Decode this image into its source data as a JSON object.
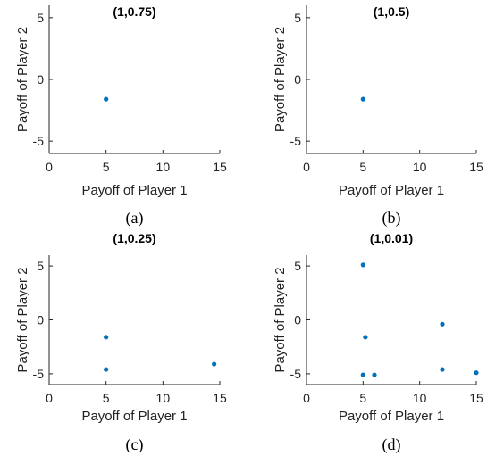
{
  "chart_data": [
    {
      "type": "scatter",
      "title": "(1,0.75)",
      "caption": "(a)",
      "xlabel": "Payoff of Player 1",
      "ylabel": "Payoff of Player 2",
      "xlim": [
        0,
        15
      ],
      "ylim": [
        -6,
        6
      ],
      "xticks": [
        "0",
        "5",
        "10",
        "15"
      ],
      "yticks": [
        "5",
        "0",
        "-5"
      ],
      "color": "#0072BD",
      "points": [
        {
          "x": 5,
          "y": -1.6
        }
      ]
    },
    {
      "type": "scatter",
      "title": "(1,0.5)",
      "caption": "(b)",
      "xlabel": "Payoff of Player 1",
      "ylabel": "Payoff of Player 2",
      "xlim": [
        0,
        15
      ],
      "ylim": [
        -6,
        6
      ],
      "xticks": [
        "0",
        "5",
        "10",
        "15"
      ],
      "yticks": [
        "5",
        "0",
        "-5"
      ],
      "color": "#0072BD",
      "points": [
        {
          "x": 5,
          "y": -1.6
        }
      ]
    },
    {
      "type": "scatter",
      "title": "(1,0.25)",
      "caption": "(c)",
      "xlabel": "Payoff of Player 1",
      "ylabel": "Payoff of Player 2",
      "xlim": [
        0,
        15
      ],
      "ylim": [
        -6,
        6
      ],
      "xticks": [
        "0",
        "5",
        "10",
        "15"
      ],
      "yticks": [
        "5",
        "0",
        "-5"
      ],
      "color": "#0072BD",
      "points": [
        {
          "x": 5,
          "y": -1.6
        },
        {
          "x": 5,
          "y": -4.6
        },
        {
          "x": 14.5,
          "y": -4.1
        }
      ]
    },
    {
      "type": "scatter",
      "title": "(1,0.01)",
      "caption": "(d)",
      "xlabel": "Payoff of Player 1",
      "ylabel": "Payoff of Player 2",
      "xlim": [
        0,
        15
      ],
      "ylim": [
        -6,
        6
      ],
      "xticks": [
        "0",
        "5",
        "10",
        "15"
      ],
      "yticks": [
        "5",
        "0",
        "-5"
      ],
      "color": "#0072BD",
      "points": [
        {
          "x": 5,
          "y": 5.1
        },
        {
          "x": 5.2,
          "y": -1.6
        },
        {
          "x": 5,
          "y": -5.1
        },
        {
          "x": 6,
          "y": -5.1
        },
        {
          "x": 12,
          "y": -0.4
        },
        {
          "x": 12,
          "y": -4.6
        },
        {
          "x": 15,
          "y": -4.9
        }
      ]
    }
  ]
}
